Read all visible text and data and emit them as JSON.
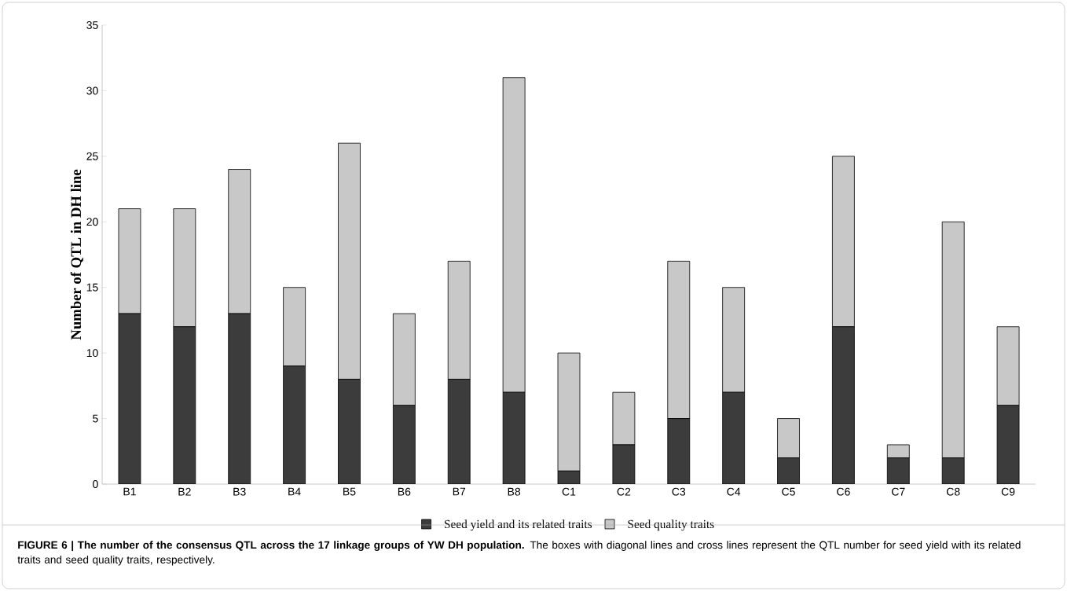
{
  "chart_data": {
    "type": "bar",
    "stacked": true,
    "title": "FIGURE 6 | The number of the consensus QTL across the 17 linkage groups of YW DH population.",
    "annotations": [
      "The boxes with diagonal lines and cross lines represent the QTL number for seed yield with its related traits and seed quality traits, respectively."
    ],
    "ylabel": "Number of QTL in DH line",
    "categories": [
      "B1",
      "B2",
      "B3",
      "B4",
      "B5",
      "B6",
      "B7",
      "B8",
      "C1",
      "C2",
      "C3",
      "C4",
      "C5",
      "C6",
      "C7",
      "C8",
      "C9"
    ],
    "series": [
      {
        "name": "Seed yield and its related traits",
        "color": "#3c3c3c",
        "values": [
          13,
          12,
          13,
          9,
          8,
          6,
          8,
          7,
          1,
          3,
          5,
          7,
          2,
          12,
          2,
          2,
          6
        ]
      },
      {
        "name": "Seed quality traits",
        "color": "#c8c8c8",
        "values": [
          8,
          9,
          11,
          6,
          18,
          7,
          9,
          24,
          9,
          4,
          12,
          8,
          3,
          13,
          1,
          18,
          6
        ]
      }
    ],
    "ylim": [
      0,
      35
    ],
    "yticks": [
      0,
      5,
      10,
      15,
      20,
      25,
      30,
      35
    ],
    "grid": false,
    "legend": "bottom"
  }
}
